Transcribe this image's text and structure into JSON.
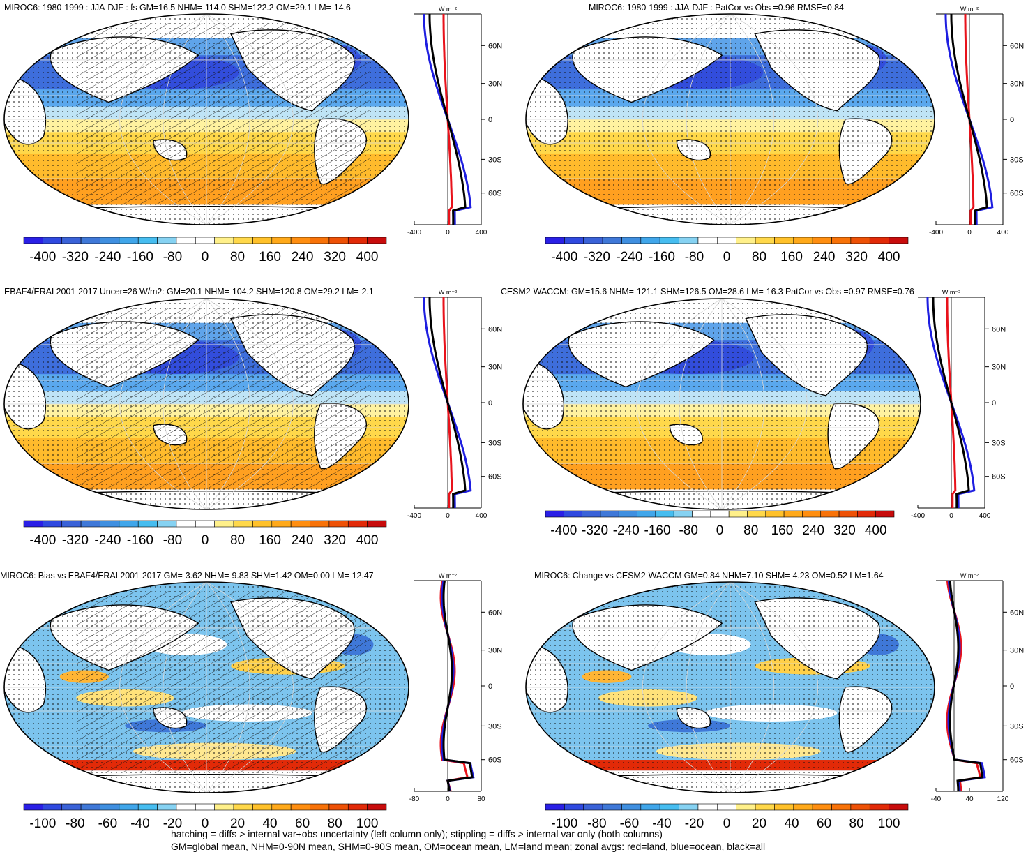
{
  "footnote": {
    "line1": "hatching = diffs > internal var+obs uncertainty (left column only); stippling = diffs > internal var only (both columns)",
    "line2": "GM=global mean, NHM=0-90N mean, SHM=0-90S mean, OM=ocean mean, LM=land mean; zonal avgs: red=land, blue=ocean, black=all"
  },
  "zonal_units": "W m⁻²",
  "lat_ticks": [
    "60N",
    "30N",
    "0",
    "30S",
    "60S"
  ],
  "colors": {
    "land": "#e8121b",
    "ocean": "#1e1ee0",
    "all": "#000000"
  },
  "panels": [
    {
      "id": "p1",
      "title": "MIROC6: 1980-1999 : JJA-DJF : fs GM=16.5 NHM=-114.0 SHM=122.2 OM=29.1 LM=-14.6",
      "colorbar_labels": [
        "-400",
        "-320",
        "-240",
        "-160",
        "-80",
        "0",
        "80",
        "160",
        "240",
        "320",
        "400"
      ],
      "zonal_x_labels": [
        "-400",
        "0",
        "400"
      ],
      "hatched": true,
      "kind": "seasonal"
    },
    {
      "id": "p2",
      "title": "MIROC6: 1980-1999 : JJA-DJF : PatCor vs Obs =0.96 RMSE=0.84",
      "colorbar_labels": [
        "-400",
        "-320",
        "-240",
        "-160",
        "-80",
        "0",
        "80",
        "160",
        "240",
        "320",
        "400"
      ],
      "zonal_x_labels": [
        "-400",
        "0",
        "400"
      ],
      "hatched": false,
      "kind": "seasonal"
    },
    {
      "id": "p3",
      "title": "EBAF4/ERAI 2001-2017 Uncer=26 W/m2: GM=20.1 NHM=-104.2 SHM=120.8 OM=29.2 LM=-2.1",
      "colorbar_labels": [
        "-400",
        "-320",
        "-240",
        "-160",
        "-80",
        "0",
        "80",
        "160",
        "240",
        "320",
        "400"
      ],
      "zonal_x_labels": [
        "-400",
        "0",
        "400"
      ],
      "hatched": true,
      "kind": "seasonal"
    },
    {
      "id": "p4",
      "title": "CESM2-WACCM: GM=15.6 NHM=-121.1 SHM=126.5 OM=28.6 LM=-16.3 PatCor vs Obs =0.97 RMSE=0.76",
      "colorbar_labels": [
        "-400",
        "-320",
        "-240",
        "-160",
        "-80",
        "0",
        "80",
        "160",
        "240",
        "320",
        "400"
      ],
      "zonal_x_labels": [
        "-400",
        "0",
        "400"
      ],
      "hatched": false,
      "kind": "seasonal"
    },
    {
      "id": "p5",
      "title": "MIROC6: Bias vs EBAF4/ERAI 2001-2017 GM=-3.62 NHM=-9.83 SHM=1.42 OM=0.00 LM=-12.47",
      "colorbar_labels": [
        "-100",
        "-80",
        "-60",
        "-40",
        "-20",
        "0",
        "20",
        "40",
        "60",
        "80",
        "100"
      ],
      "zonal_x_labels": [
        "-80",
        "0",
        "80"
      ],
      "hatched": true,
      "kind": "diff"
    },
    {
      "id": "p6",
      "title": "MIROC6: Change vs CESM2-WACCM GM=0.84 NHM=7.10 SHM=-4.23 OM=0.52 LM=1.64",
      "colorbar_labels": [
        "-100",
        "-80",
        "-60",
        "-40",
        "-20",
        "0",
        "20",
        "40",
        "60",
        "80",
        "100"
      ],
      "zonal_x_labels": [
        "-40",
        "40",
        "120"
      ],
      "hatched": false,
      "kind": "diff"
    }
  ]
}
